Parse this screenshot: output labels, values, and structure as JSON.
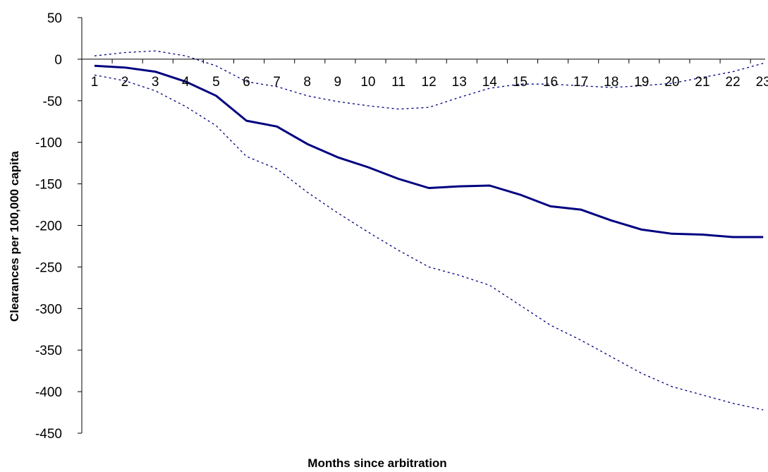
{
  "chart_data": {
    "type": "line",
    "xlabel": "Months since arbitration",
    "ylabel": "Clearances per 100,000 capita",
    "ylim": [
      -450,
      50
    ],
    "yticks": [
      50,
      0,
      -50,
      -100,
      -150,
      -200,
      -250,
      -300,
      -350,
      -400,
      -450
    ],
    "categories": [
      "1",
      "2",
      "3",
      "4",
      "5",
      "6",
      "7",
      "8",
      "9",
      "10",
      "11",
      "12",
      "13",
      "14",
      "15",
      "16",
      "17",
      "18",
      "19",
      "20",
      "21",
      "22",
      "23"
    ],
    "grid": false,
    "series": [
      {
        "style": "solid",
        "color": "#000080",
        "values": [
          -8,
          -10,
          -15,
          -27,
          -44,
          -74,
          -81,
          -102,
          -118,
          -130,
          -144,
          -155,
          -153,
          -152,
          -163,
          -177,
          -181,
          -194,
          -205,
          -210,
          -211,
          -214,
          -214
        ]
      },
      {
        "style": "dotted",
        "color": "#000080",
        "values": [
          4,
          8,
          10,
          4,
          -8,
          -27,
          -33,
          -44,
          -51,
          -56,
          -60,
          -58,
          -46,
          -35,
          -30,
          -30,
          -32,
          -34,
          -32,
          -29,
          -22,
          -15,
          -5
        ]
      },
      {
        "style": "dotted",
        "color": "#000080",
        "values": [
          -19,
          -26,
          -38,
          -57,
          -80,
          -117,
          -132,
          -160,
          -185,
          -208,
          -230,
          -250,
          -260,
          -272,
          -296,
          -320,
          -338,
          -358,
          -378,
          -394,
          -404,
          -414,
          -422
        ]
      }
    ]
  }
}
